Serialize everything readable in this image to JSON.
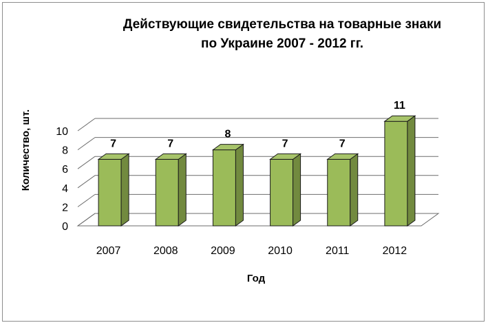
{
  "chart_data": {
    "type": "bar",
    "title_line1": "Действующие свидетельства на товарные знаки",
    "title_line2": "по Украине 2007 - 2012 гг.",
    "xlabel": "Год",
    "ylabel": "Количество, шт.",
    "categories": [
      "2007",
      "2008",
      "2009",
      "2010",
      "2011",
      "2012"
    ],
    "values": [
      7,
      7,
      8,
      7,
      7,
      11
    ],
    "ylim": [
      0,
      10
    ],
    "yticks": [
      "0",
      "2",
      "4",
      "6",
      "8",
      "10"
    ],
    "grid": true,
    "colors": {
      "bar_front": "#9bbb59",
      "bar_side": "#728a3f",
      "bar_top": "#a7c46a",
      "bar_edge": "#1a1a1a",
      "grid": "#000000"
    }
  }
}
